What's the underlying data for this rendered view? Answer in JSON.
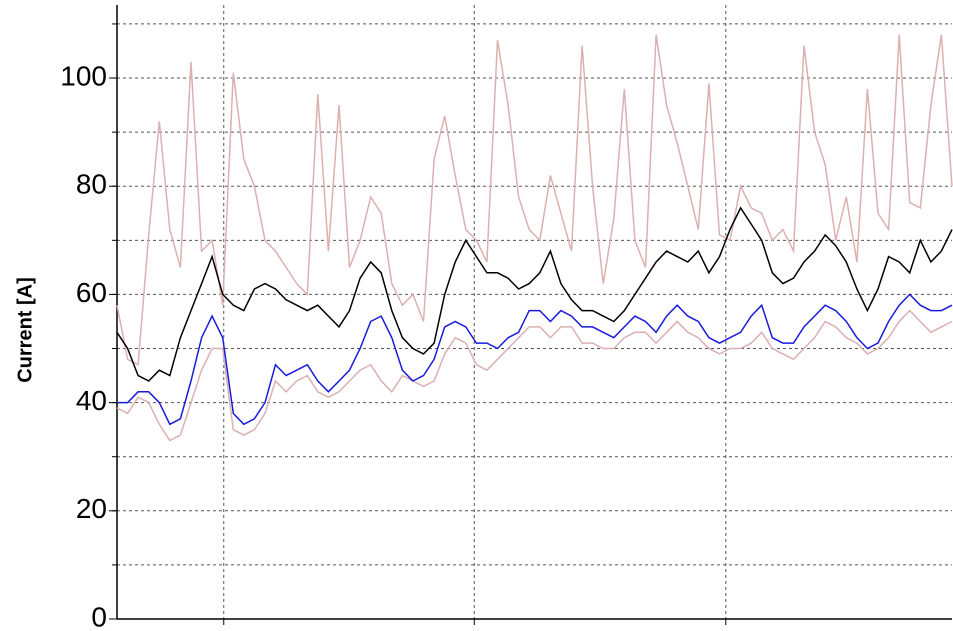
{
  "chart_data": {
    "type": "line",
    "y_label": "Current [A]",
    "ylim": [
      0,
      113.5
    ],
    "yticks": [
      0,
      20,
      40,
      60,
      80,
      100
    ],
    "ygrid": [
      10,
      20,
      30,
      40,
      50,
      60,
      70,
      80,
      90,
      100,
      110
    ],
    "xgrid": [
      10.1,
      33.8,
      57.6
    ],
    "grid": true,
    "categories": [
      null,
      null,
      null,
      null,
      null,
      null,
      null,
      null,
      null,
      null,
      null,
      null,
      null,
      null,
      null,
      null,
      null,
      null,
      null,
      null,
      null,
      null,
      null,
      null,
      null,
      null,
      null,
      null,
      null,
      null,
      null,
      null,
      null,
      null,
      null,
      null,
      null,
      null,
      null,
      null,
      null,
      null,
      null,
      null,
      null,
      null,
      null,
      null,
      null,
      null,
      null,
      null,
      null,
      null,
      null,
      null,
      null,
      null,
      null,
      null,
      null,
      null,
      null,
      null,
      null,
      null,
      null,
      null,
      null,
      null,
      null,
      null,
      null,
      null,
      null,
      null,
      null,
      null,
      null,
      null
    ],
    "series": [
      {
        "color": "#dcb0b0",
        "values": [
          39,
          38,
          41,
          40,
          36,
          33,
          34,
          40,
          46,
          50,
          50,
          35,
          34,
          35,
          38,
          44,
          42,
          44,
          45,
          42,
          41,
          42,
          44,
          46,
          47,
          44,
          42,
          45,
          44,
          43,
          44,
          49,
          52,
          51,
          47,
          46,
          48,
          50,
          52,
          54,
          54,
          52,
          54,
          54,
          51,
          51,
          50,
          50,
          52,
          53,
          53,
          51,
          53,
          55,
          53,
          52,
          50,
          49,
          50,
          50,
          51,
          53,
          50,
          49,
          48,
          50,
          52,
          55,
          54,
          52,
          51,
          49,
          50,
          52,
          55,
          57,
          55,
          53,
          54,
          55
        ]
      },
      {
        "color": "#dcb0b0",
        "values": [
          58,
          48,
          47,
          71,
          92,
          72,
          65,
          103,
          68,
          70,
          58,
          101,
          85,
          80,
          70,
          68,
          65,
          62,
          60,
          97,
          68,
          95,
          65,
          70,
          78,
          75,
          62,
          58,
          60,
          55,
          85,
          93,
          82,
          72,
          70,
          66,
          107,
          95,
          78,
          72,
          70,
          82,
          75,
          68,
          106,
          80,
          62,
          74,
          98,
          70,
          65,
          108,
          95,
          88,
          80,
          72,
          99,
          71,
          70,
          80,
          76,
          75,
          70,
          72,
          68,
          106,
          90,
          84,
          70,
          78,
          66,
          98,
          75,
          72,
          108,
          77,
          76,
          95,
          108,
          80
        ]
      },
      {
        "color": "#000000",
        "values": [
          53,
          50,
          45,
          44,
          46,
          45,
          52,
          57,
          62,
          67,
          60,
          58,
          57,
          61,
          62,
          61,
          59,
          58,
          57,
          58,
          56,
          54,
          57,
          63,
          66,
          64,
          57,
          52,
          50,
          49,
          51,
          60,
          66,
          70,
          67,
          64,
          64,
          63,
          61,
          62,
          64,
          68,
          62,
          59,
          57,
          57,
          56,
          55,
          57,
          60,
          63,
          66,
          68,
          67,
          66,
          68,
          64,
          67,
          72,
          76,
          73,
          70,
          64,
          62,
          63,
          66,
          68,
          71,
          69,
          66,
          61,
          57,
          61,
          67,
          66,
          64,
          70,
          66,
          68,
          72
        ]
      },
      {
        "color": "#1a1adc",
        "values": [
          40,
          40,
          42,
          42,
          40,
          36,
          37,
          44,
          52,
          56,
          52,
          38,
          36,
          37,
          40,
          47,
          45,
          46,
          47,
          44,
          42,
          44,
          46,
          50,
          55,
          56,
          52,
          46,
          44,
          45,
          48,
          54,
          55,
          54,
          51,
          51,
          50,
          52,
          53,
          57,
          57,
          55,
          57,
          56,
          54,
          54,
          53,
          52,
          54,
          56,
          55,
          53,
          56,
          58,
          56,
          55,
          52,
          51,
          52,
          53,
          56,
          58,
          52,
          51,
          51,
          54,
          56,
          58,
          57,
          55,
          52,
          50,
          51,
          55,
          58,
          60,
          58,
          57,
          57,
          58
        ]
      }
    ]
  }
}
